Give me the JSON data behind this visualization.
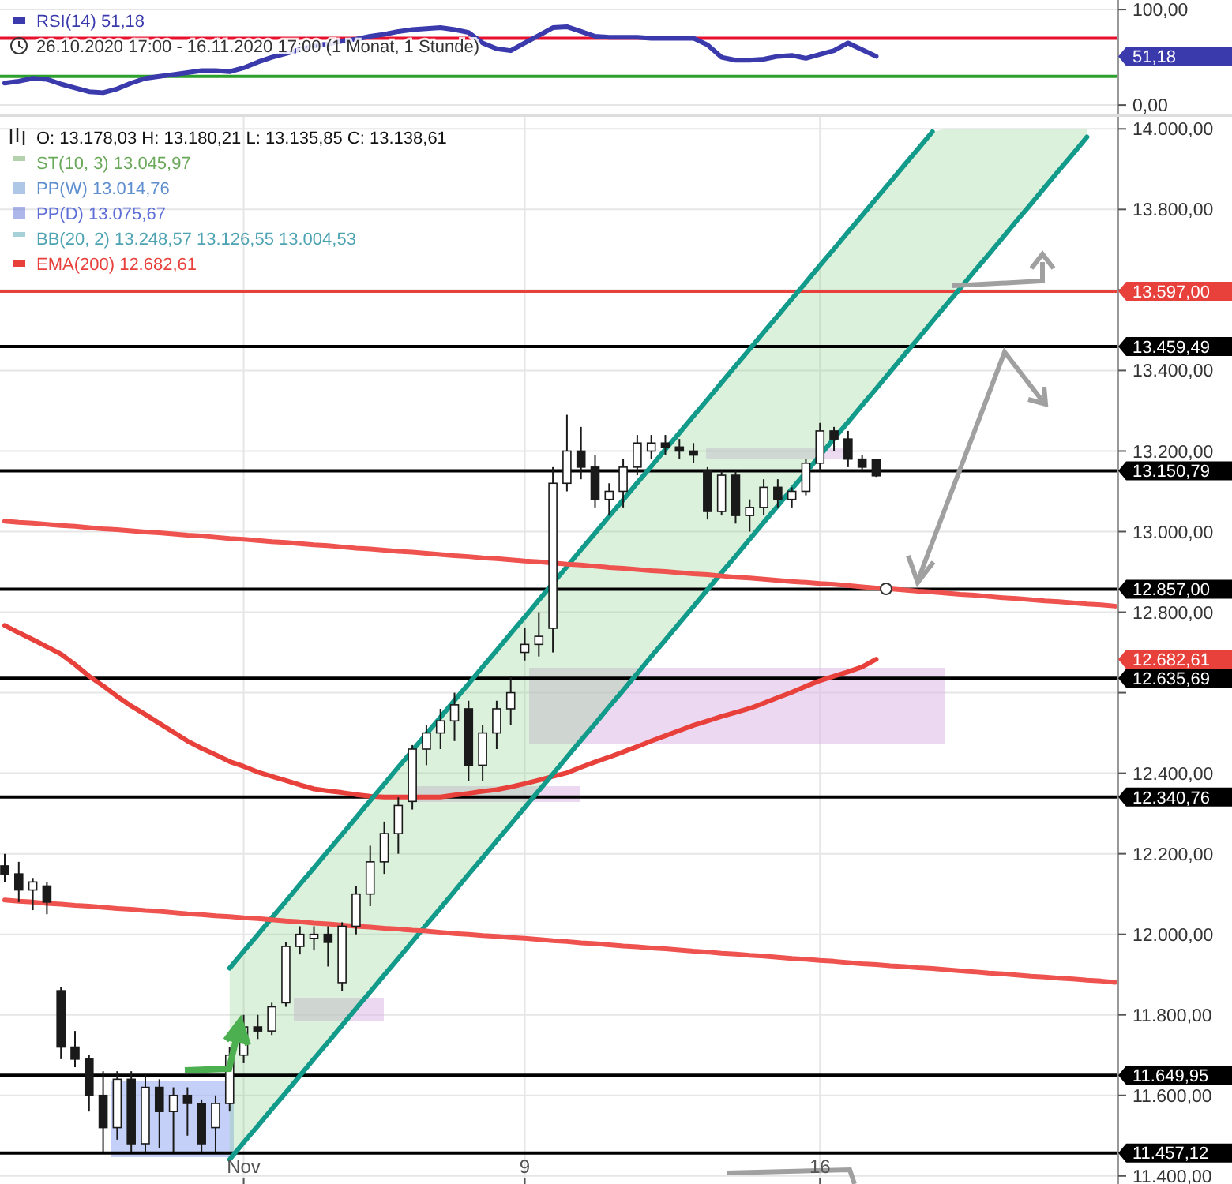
{
  "chart_data": [
    {
      "type": "line",
      "subtitle": "26.10.2020 17:00 - 16.11.2020 17:00  (1 Monat, 1 Stunde)",
      "ylim": [
        -9,
        110
      ],
      "yticks": [
        {
          "value": 0,
          "label": "0,00"
        },
        {
          "value": 100,
          "label": "100,00"
        }
      ],
      "tick_labels": "y",
      "grid": "y",
      "legend": "top left",
      "categories": [
        null,
        null,
        null,
        null,
        null,
        null,
        null,
        null,
        null,
        null,
        null,
        null,
        null,
        null,
        null,
        null,
        null,
        null,
        null,
        null,
        null,
        null,
        null,
        null,
        null,
        null,
        null,
        null,
        null,
        null,
        null,
        null,
        null,
        null,
        null,
        null,
        null,
        null,
        null,
        null,
        null,
        null,
        null,
        null,
        null,
        null,
        null,
        null,
        null,
        null,
        null,
        null,
        null,
        null,
        null,
        null,
        null,
        null,
        null,
        null,
        null,
        null,
        null,
        null,
        null,
        null,
        null,
        null,
        null,
        null,
        null,
        null,
        null,
        null,
        null,
        null,
        null,
        null,
        null,
        null
      ],
      "ref_lines": [
        {
          "axis": "y",
          "value": 70,
          "color": "#e8112d"
        },
        {
          "axis": "y",
          "value": 30,
          "color": "#2ca02c"
        }
      ],
      "annotations": [
        "51,18"
      ],
      "series": [
        {
          "name": "RSI(14)  51,18",
          "color": "#3a3aad",
          "values": [
            23,
            25,
            28,
            27,
            22,
            18,
            14,
            13,
            17,
            23,
            28,
            30,
            32,
            34,
            36,
            36,
            35,
            39,
            45,
            50,
            54,
            58,
            62,
            64,
            67,
            69,
            72,
            74,
            77,
            79,
            80,
            81,
            79,
            76,
            65,
            59,
            57,
            65,
            73,
            81,
            82,
            77,
            72,
            71,
            71,
            71,
            70,
            70,
            70,
            70,
            63,
            50,
            47,
            47,
            48,
            51,
            52,
            49,
            53,
            57,
            65,
            58,
            51,
            null,
            null,
            null,
            null,
            null,
            null,
            null,
            null,
            null,
            null,
            null,
            null,
            null,
            null,
            null,
            null,
            null
          ]
        }
      ]
    },
    {
      "type": "candlestick",
      "ylim": [
        11380,
        14030
      ],
      "grid": true,
      "legend": "top left",
      "categories": [
        null,
        null,
        null,
        null,
        null,
        null,
        null,
        null,
        null,
        null,
        null,
        null,
        null,
        null,
        null,
        null,
        null,
        "Nov",
        null,
        null,
        null,
        null,
        null,
        null,
        null,
        null,
        null,
        null,
        null,
        null,
        null,
        null,
        null,
        null,
        null,
        null,
        null,
        "9",
        null,
        null,
        null,
        null,
        null,
        null,
        null,
        null,
        null,
        null,
        null,
        null,
        null,
        null,
        null,
        null,
        null,
        null,
        null,
        null,
        "16",
        null,
        null,
        null,
        null,
        null,
        null,
        null,
        null,
        null,
        null,
        null,
        null,
        null,
        null,
        null,
        null,
        null,
        null,
        null,
        null,
        null
      ],
      "yticks": [
        {
          "value": 11400,
          "label": "11.400,00"
        },
        {
          "value": 11600,
          "label": "11.600,00"
        },
        {
          "value": 11800,
          "label": "11.800,00"
        },
        {
          "value": 12000,
          "label": "12.000,00"
        },
        {
          "value": 12200,
          "label": "12.200,00"
        },
        {
          "value": 12400,
          "label": "12.400,00"
        },
        {
          "value": 12600,
          "label": null
        },
        {
          "value": 12800,
          "label": "12.800,00"
        },
        {
          "value": 13000,
          "label": "13.000,00"
        },
        {
          "value": 13200,
          "label": "13.200,00"
        },
        {
          "value": 13400,
          "label": "13.400,00"
        },
        {
          "value": 13600,
          "label": null
        },
        {
          "value": 13800,
          "label": "13.800,00"
        },
        {
          "value": 14000,
          "label": "14.000,00"
        }
      ],
      "annotations": [
        "O: 13.178,03  H: 13.180,21  L: 13.135,85  C: 13.138,61",
        "ST(10, 3)  13.045,97",
        "PP(W)  13.014,76",
        "PP(D)  13.075,67",
        "BB(20, 2)  13.248,57  13.126,55  13.004,53",
        "12.682,61"
      ],
      "ref_lines": [
        {
          "axis": "y",
          "value": 13597,
          "label": "13.597,00",
          "color": "#e8413c"
        },
        {
          "axis": "y",
          "value": 13459.49,
          "label": "13.459,49",
          "color": "#000000"
        },
        {
          "axis": "y",
          "value": 13150.79,
          "label": "13.150,79",
          "color": "#000000"
        },
        {
          "axis": "y",
          "value": 12857,
          "label": "12.857,00",
          "color": "#000000"
        },
        {
          "axis": "y",
          "value": 12635.69,
          "label": "12.635,69",
          "color": "#000000"
        },
        {
          "axis": "y",
          "value": 12340.76,
          "label": "12.340,76",
          "color": "#000000"
        },
        {
          "axis": "y",
          "value": 11649.95,
          "label": "11.649,95",
          "color": "#000000"
        },
        {
          "axis": "y",
          "value": 11457.12,
          "label": "11.457,12",
          "color": "#000000"
        }
      ],
      "ohlc": [
        [
          12170,
          12200,
          12130,
          12150
        ],
        [
          12150,
          12180,
          12080,
          12110
        ],
        [
          12110,
          12140,
          12060,
          12130
        ],
        [
          12120,
          12130,
          12050,
          12080
        ],
        [
          11860,
          11870,
          11690,
          11720
        ],
        [
          11720,
          11760,
          11670,
          11690
        ],
        [
          11690,
          11700,
          11560,
          11600
        ],
        [
          11600,
          11660,
          11460,
          11520
        ],
        [
          11520,
          11660,
          11490,
          11640
        ],
        [
          11640,
          11660,
          11460,
          11480
        ],
        [
          11480,
          11650,
          11460,
          11620
        ],
        [
          11620,
          11640,
          11470,
          11560
        ],
        [
          11560,
          11620,
          11460,
          11600
        ],
        [
          11600,
          11620,
          11500,
          11580
        ],
        [
          11580,
          11590,
          11460,
          11480
        ],
        [
          11520,
          11600,
          11460,
          11580
        ],
        [
          11580,
          11720,
          11560,
          11700
        ],
        [
          11700,
          11800,
          11680,
          11770
        ],
        [
          11770,
          11800,
          11740,
          11760
        ],
        [
          11760,
          11830,
          11750,
          11820
        ],
        [
          11830,
          11980,
          11820,
          11970
        ],
        [
          11970,
          12020,
          11950,
          12000
        ],
        [
          11990,
          12020,
          11960,
          12000
        ],
        [
          12000,
          12020,
          11920,
          11980
        ],
        [
          11880,
          12030,
          11860,
          12020
        ],
        [
          12020,
          12120,
          12000,
          12100
        ],
        [
          12100,
          12220,
          12070,
          12180
        ],
        [
          12180,
          12280,
          12150,
          12250
        ],
        [
          12250,
          12340,
          12200,
          12320
        ],
        [
          12330,
          12470,
          12310,
          12460
        ],
        [
          12460,
          12520,
          12420,
          12500
        ],
        [
          12500,
          12560,
          12460,
          12530
        ],
        [
          12530,
          12600,
          12480,
          12570
        ],
        [
          12560,
          12580,
          12380,
          12420
        ],
        [
          12420,
          12520,
          12380,
          12500
        ],
        [
          12500,
          12580,
          12460,
          12560
        ],
        [
          12560,
          12640,
          12520,
          12600
        ],
        [
          12700,
          12760,
          12680,
          12720
        ],
        [
          12720,
          12800,
          12690,
          12740
        ],
        [
          12760,
          13160,
          12700,
          13120
        ],
        [
          13120,
          13290,
          13100,
          13200
        ],
        [
          13200,
          13260,
          13130,
          13160
        ],
        [
          13160,
          13190,
          13060,
          13080
        ],
        [
          13080,
          13120,
          13040,
          13100
        ],
        [
          13100,
          13180,
          13060,
          13160
        ],
        [
          13160,
          13240,
          13140,
          13220
        ],
        [
          13200,
          13240,
          13180,
          13220
        ],
        [
          13220,
          13240,
          13190,
          13210
        ],
        [
          13210,
          13230,
          13180,
          13200
        ],
        [
          13200,
          13220,
          13170,
          13190
        ],
        [
          13150,
          13160,
          13030,
          13050
        ],
        [
          13050,
          13150,
          13040,
          13140
        ],
        [
          13140,
          13150,
          13020,
          13040
        ],
        [
          13040,
          13080,
          13000,
          13060
        ],
        [
          13060,
          13130,
          13040,
          13110
        ],
        [
          13110,
          13130,
          13060,
          13080
        ],
        [
          13080,
          13110,
          13060,
          13100
        ],
        [
          13100,
          13180,
          13090,
          13170
        ],
        [
          13170,
          13270,
          13150,
          13250
        ],
        [
          13250,
          13260,
          13200,
          13230
        ],
        [
          13230,
          13250,
          13160,
          13180
        ],
        [
          13180,
          13190,
          13150,
          13160
        ],
        [
          13178.03,
          13180.21,
          13135.85,
          13138.61
        ],
        null,
        null,
        null,
        null,
        null,
        null,
        null,
        null,
        null,
        null,
        null,
        null,
        null,
        null,
        null,
        null,
        null
      ],
      "series": [
        {
          "type": "line",
          "name": "EMA(200)  12.682,61",
          "color": "#e8413c",
          "values": [
            12767,
            12749,
            12732,
            12714,
            12696,
            12670,
            12641,
            12617,
            12591,
            12567,
            12546,
            12524,
            12502,
            12480,
            12462,
            12446,
            12429,
            12417,
            12403,
            12392,
            12382,
            12371,
            12361,
            12356,
            12352,
            12347,
            12343,
            12341,
            12341,
            12341,
            12341,
            12341,
            12346,
            12350,
            12355,
            12359,
            12366,
            12374,
            12383,
            12392,
            12401,
            12415,
            12428,
            12440,
            12453,
            12466,
            12480,
            12493,
            12506,
            12519,
            12530,
            12541,
            12551,
            12561,
            12574,
            12588,
            12601,
            12616,
            12630,
            12641,
            12652,
            12664,
            12683,
            null,
            null,
            null,
            null,
            null,
            null,
            null,
            null,
            null,
            null,
            null,
            null,
            null,
            null,
            null,
            null,
            null
          ]
        },
        {
          "type": "line",
          "color": "#129a8a",
          "values": [
            null,
            null,
            null,
            null,
            null,
            null,
            null,
            null,
            null,
            null,
            null,
            null,
            null,
            null,
            null,
            null,
            11916,
            11958,
            11999,
            12041,
            12082,
            12124,
            12165,
            12207,
            12248,
            12290,
            12332,
            12373,
            12415,
            12456,
            12498,
            12539,
            12581,
            12622,
            12664,
            12705,
            12747,
            12788,
            12830,
            12872,
            12913,
            12955,
            12996,
            13038,
            13079,
            13121,
            13162,
            13204,
            13245,
            13287,
            13328,
            13370,
            13412,
            13453,
            13495,
            13536,
            13578,
            13619,
            13661,
            13702,
            13744,
            13785,
            13827,
            13868,
            13910,
            13951,
            13993,
            null,
            null,
            null,
            null,
            null,
            null,
            null,
            null,
            null,
            null,
            null,
            null,
            null
          ],
          "upper": [
            null,
            null,
            null,
            null,
            null,
            null,
            null,
            null,
            null,
            null,
            null,
            null,
            null,
            null,
            null,
            null,
            11916,
            11958,
            11999,
            12041,
            12082,
            12124,
            12165,
            12207,
            12248,
            12290,
            12332,
            12373,
            12415,
            12456,
            12498,
            12539,
            12581,
            12622,
            12664,
            12705,
            12747,
            12788,
            12830,
            12872,
            12913,
            12955,
            12996,
            13038,
            13079,
            13121,
            13162,
            13204,
            13245,
            13287,
            13328,
            13370,
            13412,
            13453,
            13495,
            13536,
            13578,
            13619,
            13661,
            13702,
            13744,
            13785,
            13827,
            13868,
            13910,
            13951,
            13993,
            14000,
            14000,
            14000,
            14000,
            14000,
            14000,
            14000,
            14000,
            14000,
            14000,
            14000,
            null,
            null
          ],
          "lower": [
            null,
            null,
            null,
            null,
            null,
            null,
            null,
            null,
            null,
            null,
            null,
            null,
            null,
            null,
            null,
            null,
            11441,
            11483,
            11524,
            11566,
            11607,
            11649,
            11691,
            11732,
            11774,
            11816,
            11857,
            11899,
            11940,
            11982,
            12024,
            12065,
            12107,
            12149,
            12190,
            12232,
            12273,
            12315,
            12357,
            12398,
            12440,
            12482,
            12523,
            12565,
            12606,
            12648,
            12690,
            12731,
            12773,
            12814,
            12856,
            12898,
            12939,
            12981,
            13023,
            13064,
            13106,
            13147,
            13189,
            13231,
            13272,
            13314,
            13355,
            13397,
            13439,
            13480,
            13522,
            13564,
            13605,
            13647,
            13688,
            13730,
            13772,
            13813,
            13855,
            13897,
            13938,
            13980,
            null,
            null
          ]
        },
        {
          "type": "line",
          "color": "#129a8a",
          "values": [
            null,
            null,
            null,
            null,
            null,
            null,
            null,
            null,
            null,
            null,
            null,
            null,
            null,
            null,
            null,
            null,
            11441,
            11483,
            11524,
            11566,
            11607,
            11649,
            11691,
            11732,
            11774,
            11816,
            11857,
            11899,
            11940,
            11982,
            12024,
            12065,
            12107,
            12149,
            12190,
            12232,
            12273,
            12315,
            12357,
            12398,
            12440,
            12482,
            12523,
            12565,
            12606,
            12648,
            12690,
            12731,
            12773,
            12814,
            12856,
            12898,
            12939,
            12981,
            13023,
            13064,
            13106,
            13147,
            13189,
            13231,
            13272,
            13314,
            13355,
            13397,
            13439,
            13480,
            13522,
            13564,
            13605,
            13647,
            13688,
            13730,
            13772,
            13813,
            13855,
            13897,
            13938,
            13980,
            null,
            null
          ]
        },
        {
          "type": "line",
          "color": "#ef5350",
          "values": [
            13026,
            13023,
            13021,
            13018,
            13015,
            13013,
            13010,
            13007,
            13005,
            13002,
            12999,
            12997,
            12994,
            12991,
            12989,
            12986,
            12983,
            12981,
            12978,
            12975,
            12973,
            12970,
            12967,
            12965,
            12962,
            12959,
            12957,
            12954,
            12951,
            12949,
            12946,
            12943,
            12940,
            12938,
            12935,
            12933,
            12930,
            12927,
            12925,
            12922,
            12919,
            12917,
            12914,
            12911,
            12909,
            12906,
            12903,
            12901,
            12898,
            12895,
            12893,
            12890,
            12887,
            12885,
            12882,
            12879,
            12876,
            12874,
            12871,
            12869,
            12866,
            12863,
            12860,
            12858,
            12855,
            12852,
            12850,
            12847,
            12844,
            12842,
            12839,
            12836,
            12834,
            12831,
            12828,
            12826,
            12823,
            12820,
            12818,
            12815
          ]
        },
        {
          "type": "line",
          "color": "#ef5350",
          "values": [
            12085,
            12082,
            12080,
            12077,
            12075,
            12072,
            12070,
            12067,
            12064,
            12062,
            12059,
            12057,
            12054,
            12051,
            12049,
            12046,
            12044,
            12041,
            12039,
            12036,
            12033,
            12031,
            12028,
            12026,
            12023,
            12020,
            12018,
            12015,
            12013,
            12010,
            12008,
            12005,
            12002,
            12000,
            11997,
            11995,
            11992,
            11990,
            11987,
            11984,
            11982,
            11979,
            11977,
            11974,
            11971,
            11969,
            11966,
            11964,
            11961,
            11958,
            11956,
            11953,
            11951,
            11948,
            11946,
            11943,
            11940,
            11938,
            11935,
            11933,
            11930,
            11927,
            11925,
            11922,
            11920,
            11917,
            11915,
            11912,
            11909,
            11907,
            11904,
            11902,
            11899,
            11896,
            11894,
            11891,
            11889,
            11886,
            11884,
            11881
          ]
        }
      ]
    }
  ]
}
